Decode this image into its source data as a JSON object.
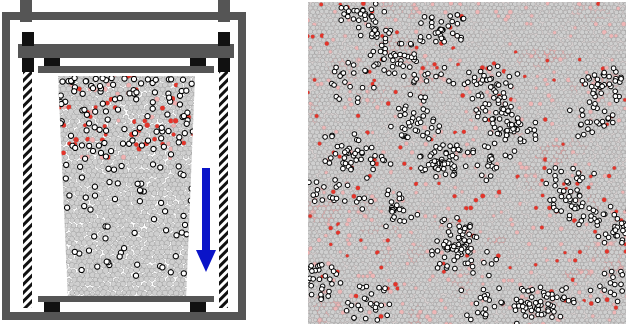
{
  "figure": {
    "panels": [
      {
        "id": "apparatus",
        "description_hidden": true
      },
      {
        "id": "packing"
      }
    ],
    "colors": {
      "frame": "#555555",
      "frame_dark": "#111111",
      "particle_fill": "#cfcfcf",
      "particle_stroke": "#9a9a9a",
      "stressed_particle": "#e4342a",
      "tracked_particle": "#000000",
      "arrow": "#0a14c8",
      "background": "#ffffff"
    },
    "arrow_direction": "down"
  }
}
